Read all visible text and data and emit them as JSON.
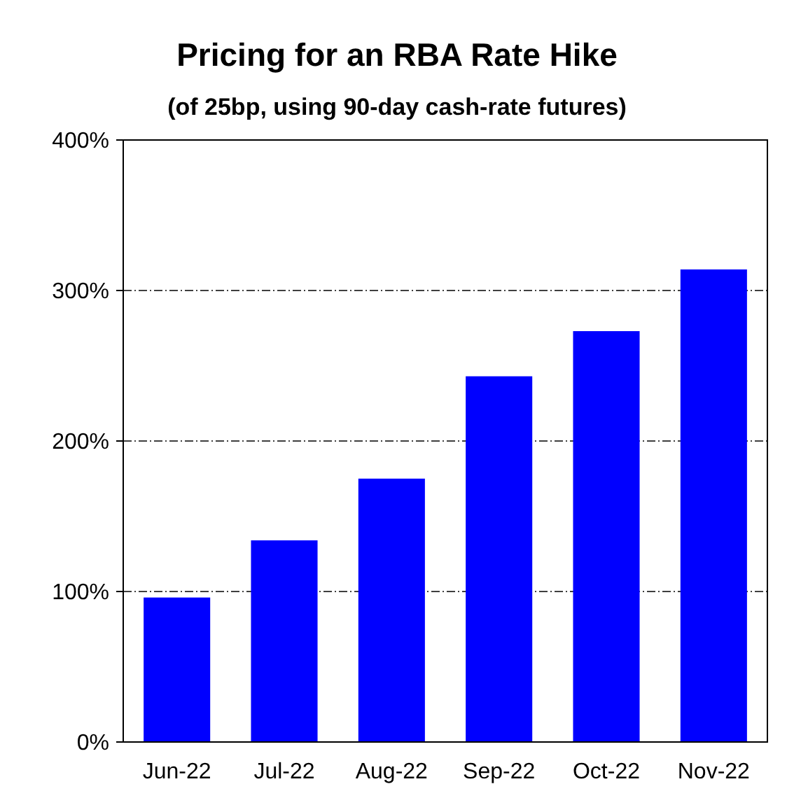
{
  "chart_data": {
    "type": "bar",
    "title": "Pricing for an RBA Rate Hike",
    "subtitle": "(of 25bp, using 90-day cash-rate futures)",
    "categories": [
      "Jun-22",
      "Jul-22",
      "Aug-22",
      "Sep-22",
      "Oct-22",
      "Nov-22"
    ],
    "values": [
      96,
      134,
      175,
      243,
      273,
      314
    ],
    "color": "#0000ff",
    "ylim": [
      0,
      400
    ],
    "yticks": [
      {
        "value": 0,
        "label": "0%"
      },
      {
        "value": 100,
        "label": "100%"
      },
      {
        "value": 200,
        "label": "200%"
      },
      {
        "value": 300,
        "label": "300%"
      },
      {
        "value": 400,
        "label": "400%"
      }
    ],
    "grid": "y"
  }
}
